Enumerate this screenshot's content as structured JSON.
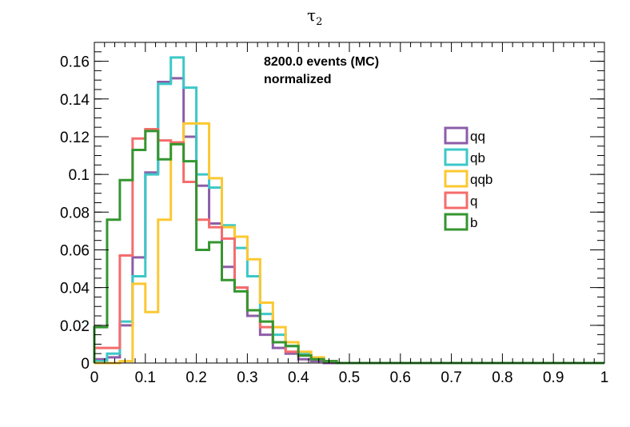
{
  "chart_data": {
    "type": "histogram-step",
    "title": "τ",
    "title_subscript": "2",
    "annotations": [
      "8200.0 events (MC)",
      "normalized"
    ],
    "xlim": [
      0,
      1
    ],
    "ylim": [
      0,
      0.17
    ],
    "x_ticks": [
      0,
      0.1,
      0.2,
      0.3,
      0.4,
      0.5,
      0.6,
      0.7,
      0.8,
      0.9,
      1
    ],
    "x_tick_labels": [
      "0",
      "0.1",
      "0.2",
      "0.3",
      "0.4",
      "0.5",
      "0.6",
      "0.7",
      "0.8",
      "0.9",
      "1"
    ],
    "y_ticks": [
      0,
      0.02,
      0.04,
      0.06,
      0.08,
      0.1,
      0.12,
      0.14,
      0.16
    ],
    "y_tick_labels": [
      "0",
      "0.02",
      "0.04",
      "0.06",
      "0.08",
      "0.1",
      "0.12",
      "0.14",
      "0.16"
    ],
    "bin_width": 0.025,
    "n_bins": 40,
    "legend_position": "right",
    "series": [
      {
        "name": "qq",
        "color": "#8d5da8",
        "values": [
          0.002,
          0.003,
          0.02,
          0.056,
          0.101,
          0.149,
          0.151,
          0.12,
          0.094,
          0.074,
          0.051,
          0.04,
          0.025,
          0.015,
          0.008,
          0.005,
          0.002,
          0.001,
          0,
          0,
          0,
          0,
          0,
          0,
          0,
          0,
          0,
          0,
          0,
          0,
          0,
          0,
          0,
          0,
          0,
          0,
          0,
          0,
          0,
          0
        ]
      },
      {
        "name": "qb",
        "color": "#3cc8c8",
        "values": [
          0.001,
          0.005,
          0.022,
          0.046,
          0.1,
          0.148,
          0.162,
          0.146,
          0.1,
          0.093,
          0.073,
          0.061,
          0.046,
          0.026,
          0.015,
          0.009,
          0.005,
          0.002,
          0.001,
          0,
          0,
          0,
          0,
          0,
          0,
          0,
          0,
          0,
          0,
          0,
          0,
          0,
          0,
          0,
          0,
          0,
          0,
          0,
          0,
          0
        ]
      },
      {
        "name": "qqb",
        "color": "#fcc832",
        "values": [
          0.0,
          0.0,
          0.001,
          0.042,
          0.027,
          0.076,
          0.117,
          0.127,
          0.127,
          0.098,
          0.072,
          0.067,
          0.055,
          0.032,
          0.019,
          0.011,
          0.006,
          0.003,
          0.001,
          0,
          0,
          0,
          0,
          0,
          0,
          0,
          0,
          0,
          0,
          0,
          0,
          0,
          0,
          0,
          0,
          0,
          0,
          0,
          0,
          0
        ]
      },
      {
        "name": "q",
        "color": "#f56c6c",
        "values": [
          0.008,
          0.008,
          0.057,
          0.119,
          0.124,
          0.118,
          0.117,
          0.096,
          0.076,
          0.072,
          0.066,
          0.04,
          0.028,
          0.019,
          0.011,
          0.006,
          0.004,
          0.002,
          0.001,
          0,
          0,
          0,
          0,
          0,
          0,
          0,
          0,
          0,
          0,
          0,
          0,
          0,
          0,
          0,
          0,
          0,
          0,
          0,
          0,
          0
        ]
      },
      {
        "name": "b",
        "color": "#349630",
        "values": [
          0.019,
          0.076,
          0.097,
          0.113,
          0.123,
          0.108,
          0.116,
          0.107,
          0.06,
          0.064,
          0.044,
          0.038,
          0.028,
          0.022,
          0.011,
          0.009,
          0.004,
          0.002,
          0.001,
          0,
          0,
          0,
          0,
          0,
          0,
          0,
          0,
          0,
          0,
          0,
          0,
          0,
          0,
          0,
          0,
          0,
          0,
          0,
          0,
          0
        ]
      }
    ]
  }
}
